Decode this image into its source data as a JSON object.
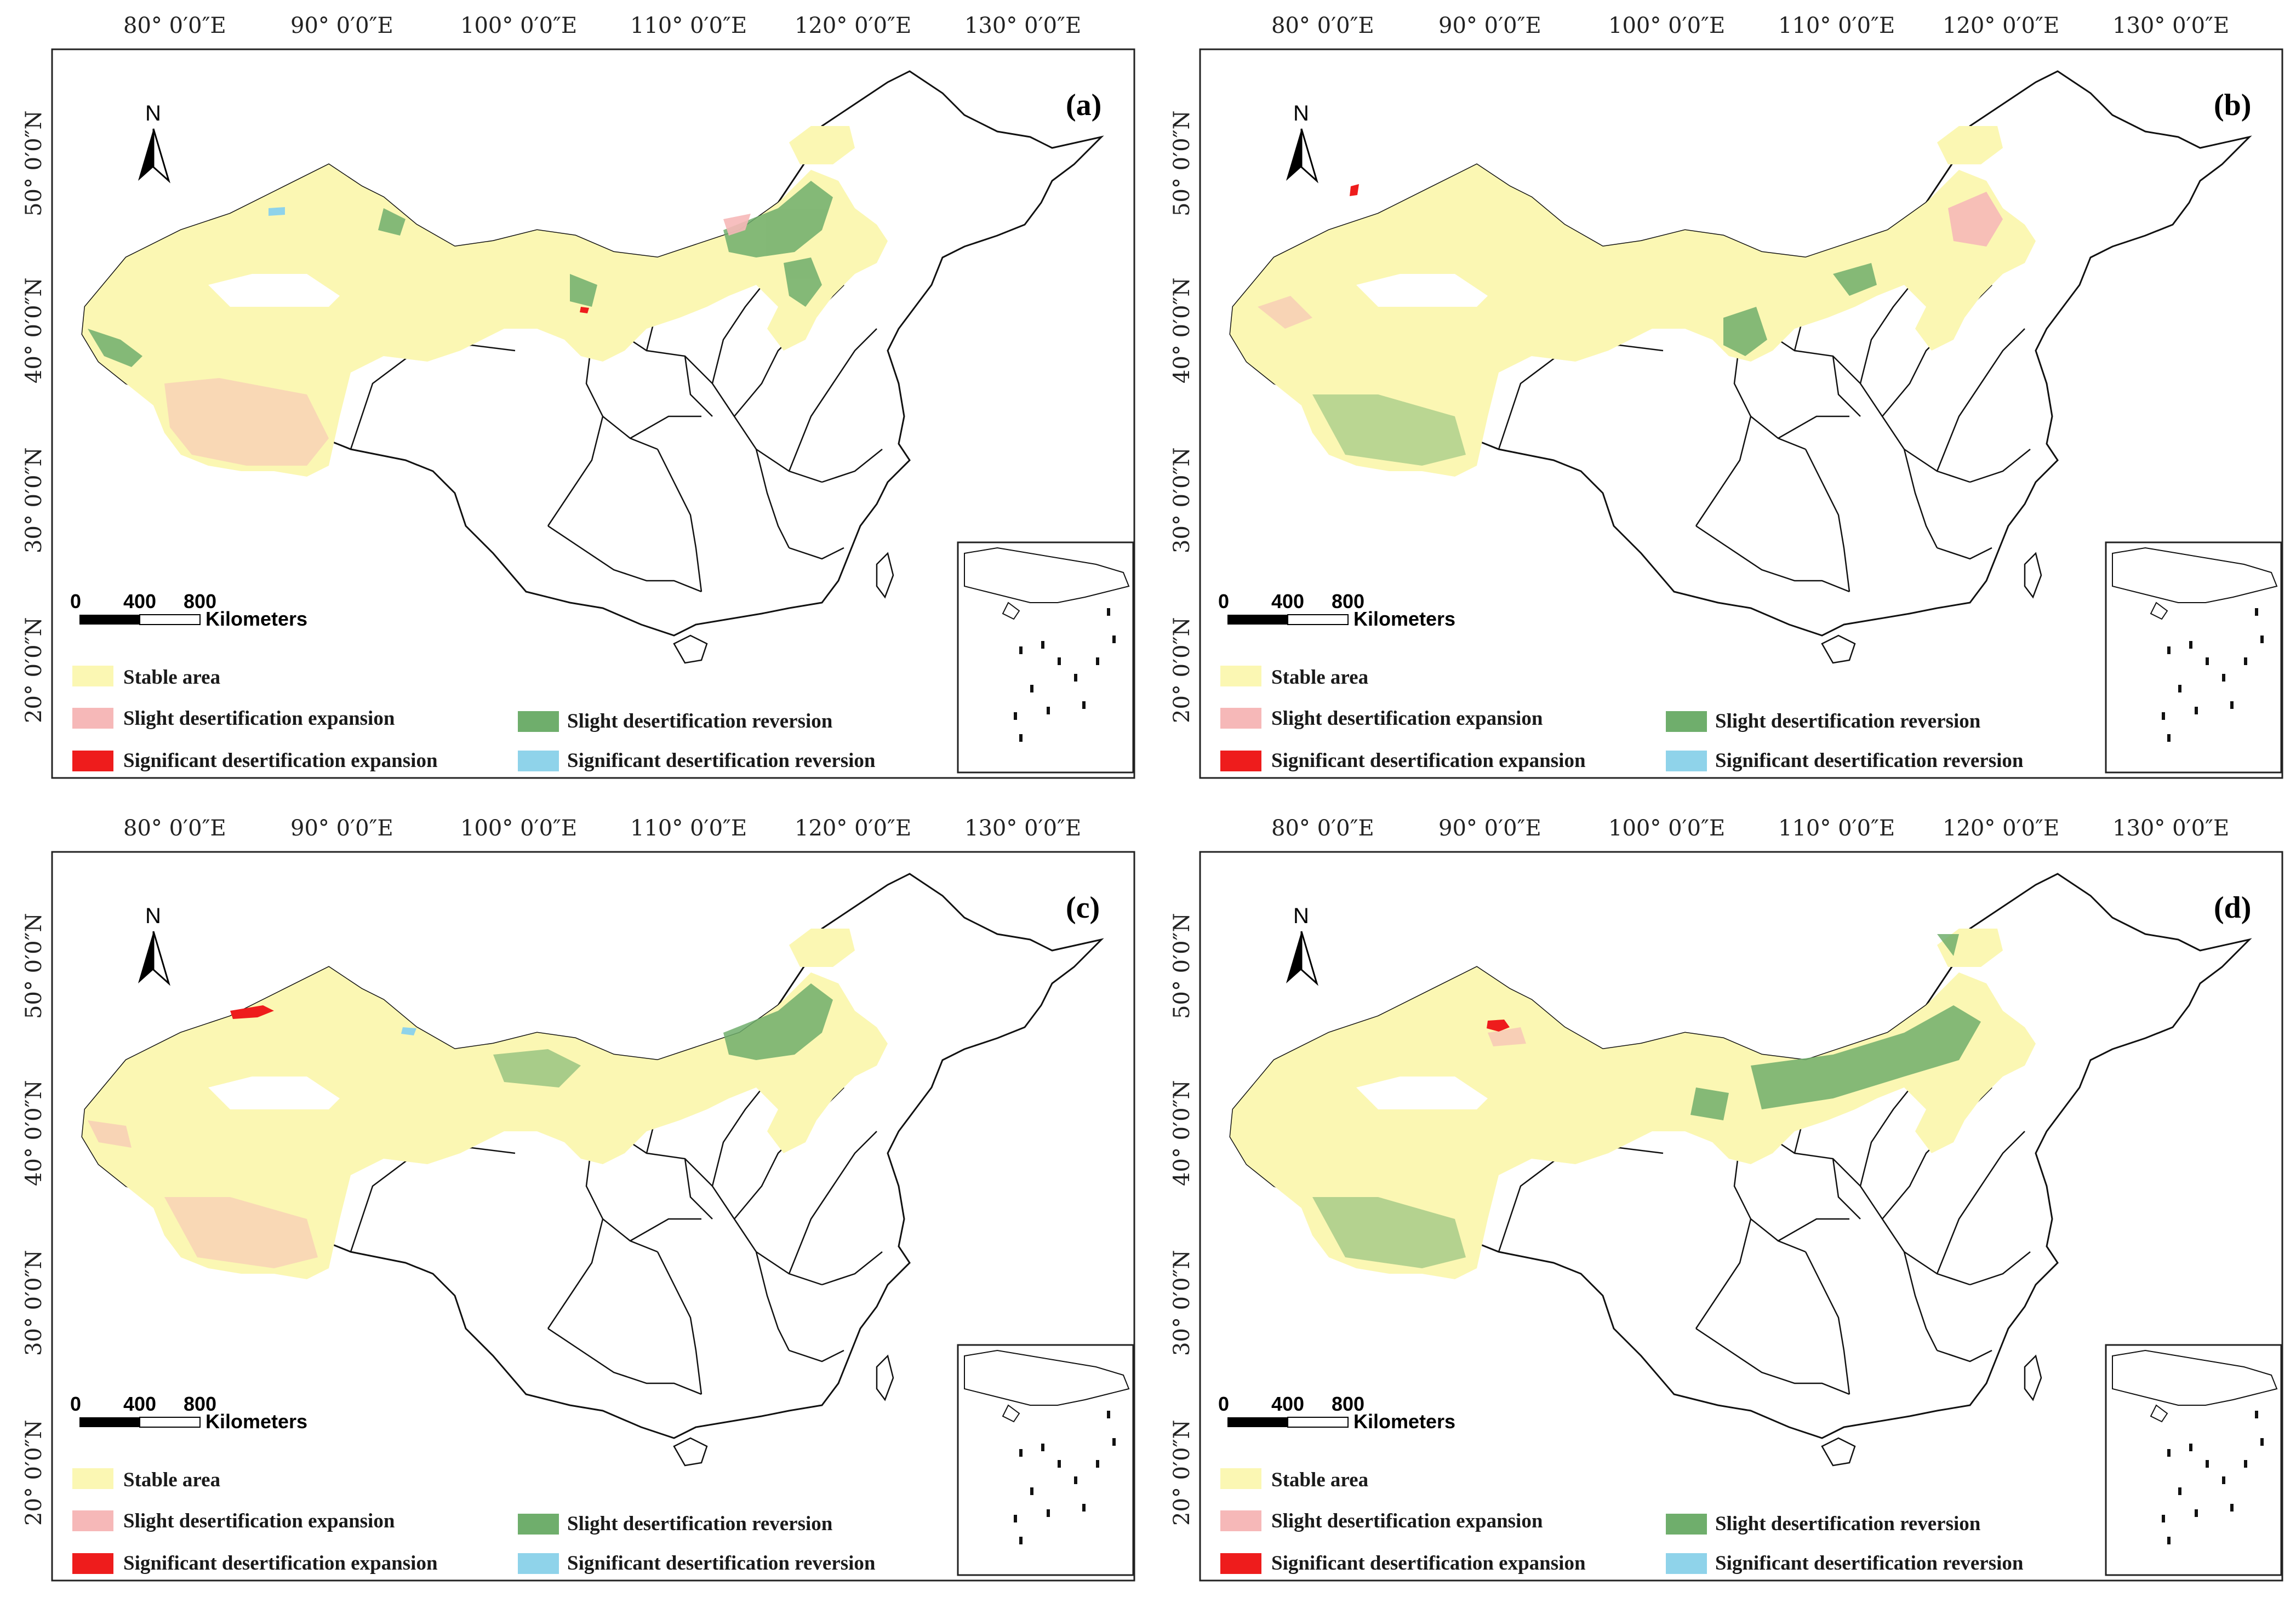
{
  "figure": {
    "longitude_labels": [
      "80° 0′0″E",
      "90° 0′0″E",
      "100° 0′0″E",
      "110° 0′0″E",
      "120° 0′0″E",
      "130° 0′0″E"
    ],
    "latitude_labels": [
      "50° 0′0″N",
      "40° 0′0″N",
      "30° 0′0″N",
      "20° 0′0″N"
    ],
    "north_arrow_label": "N",
    "scale_bar": {
      "ticks": [
        "0",
        "400",
        "800"
      ],
      "unit": "Kilometers"
    },
    "legend": {
      "stable": "Stable area",
      "slight_expansion": "Slight desertification expansion",
      "significant_expansion": "Significant desertification expansion",
      "slight_reversion": "Slight desertification reversion",
      "significant_reversion": "Significant desertification reversion"
    },
    "colors": {
      "stable": "#fbf7b3",
      "slight_expansion": "#f6b8b8",
      "significant_expansion": "#ee1c1c",
      "slight_reversion": "#6fae6c",
      "significant_reversion": "#8fd3ea",
      "outline": "#111111"
    }
  },
  "panels": [
    {
      "letter": "(a)"
    },
    {
      "letter": "(b)"
    },
    {
      "letter": "(c)"
    },
    {
      "letter": "(d)"
    }
  ]
}
